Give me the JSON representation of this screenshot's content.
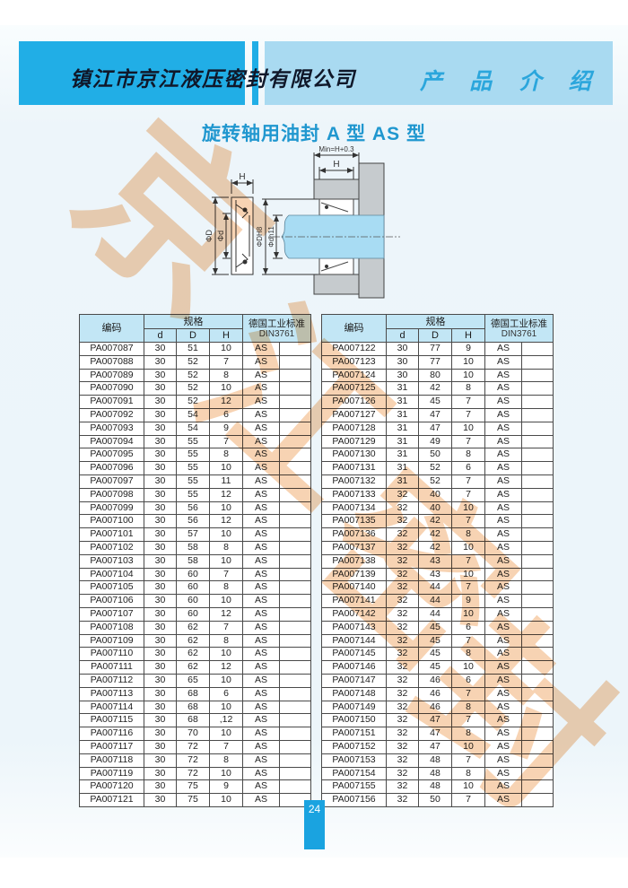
{
  "header": {
    "company": "镇江市京江液压密封有限公司",
    "section": "产 品 介 绍"
  },
  "title": "旋转轴用油封 A 型  AS 型",
  "watermark": {
    "chars": [
      "京",
      "江",
      "密",
      "封"
    ]
  },
  "diagram": {
    "left": {
      "h": "H",
      "outer_dia": "ΦD",
      "inner_dia": "Φd"
    },
    "right": {
      "min": "Min=H+0.3",
      "h": "H",
      "bore_dia": "ΦDH8",
      "shaft_dia": "Φdh11"
    }
  },
  "tables": {
    "headers": {
      "code": "编码",
      "spec": "规格",
      "d": "d",
      "D": "D",
      "H": "H",
      "din1": "德国工业标准",
      "din2": "DIN3761"
    },
    "left": {
      "rows": [
        [
          "PA007087",
          "30",
          "51",
          "10",
          "AS"
        ],
        [
          "PA007088",
          "30",
          "52",
          "7",
          "AS"
        ],
        [
          "PA007089",
          "30",
          "52",
          "8",
          "AS"
        ],
        [
          "PA007090",
          "30",
          "52",
          "10",
          "AS"
        ],
        [
          "PA007091",
          "30",
          "52",
          "12",
          "AS"
        ],
        [
          "PA007092",
          "30",
          "54",
          "6",
          "AS"
        ],
        [
          "PA007093",
          "30",
          "54",
          "9",
          "AS"
        ],
        [
          "PA007094",
          "30",
          "55",
          "7",
          "AS"
        ],
        [
          "PA007095",
          "30",
          "55",
          "8",
          "AS"
        ],
        [
          "PA007096",
          "30",
          "55",
          "10",
          "AS"
        ],
        [
          "PA007097",
          "30",
          "55",
          "11",
          "AS"
        ],
        [
          "PA007098",
          "30",
          "55",
          "12",
          "AS"
        ],
        [
          "PA007099",
          "30",
          "56",
          "10",
          "AS"
        ],
        [
          "PA007100",
          "30",
          "56",
          "12",
          "AS"
        ],
        [
          "PA007101",
          "30",
          "57",
          "10",
          "AS"
        ],
        [
          "PA007102",
          "30",
          "58",
          "8",
          "AS"
        ],
        [
          "PA007103",
          "30",
          "58",
          "10",
          "AS"
        ],
        [
          "PA007104",
          "30",
          "60",
          "7",
          "AS"
        ],
        [
          "PA007105",
          "30",
          "60",
          "8",
          "AS"
        ],
        [
          "PA007106",
          "30",
          "60",
          "10",
          "AS"
        ],
        [
          "PA007107",
          "30",
          "60",
          "12",
          "AS"
        ],
        [
          "PA007108",
          "30",
          "62",
          "7",
          "AS"
        ],
        [
          "PA007109",
          "30",
          "62",
          "8",
          "AS"
        ],
        [
          "PA007110",
          "30",
          "62",
          "10",
          "AS"
        ],
        [
          "PA007111",
          "30",
          "62",
          "12",
          "AS"
        ],
        [
          "PA007112",
          "30",
          "65",
          "10",
          "AS"
        ],
        [
          "PA007113",
          "30",
          "68",
          "6",
          "AS"
        ],
        [
          "PA007114",
          "30",
          "68",
          "10",
          "AS"
        ],
        [
          "PA007115",
          "30",
          "68",
          ",12",
          "AS"
        ],
        [
          "PA007116",
          "30",
          "70",
          "10",
          "AS"
        ],
        [
          "PA007117",
          "30",
          "72",
          "7",
          "AS"
        ],
        [
          "PA007118",
          "30",
          "72",
          "8",
          "AS"
        ],
        [
          "PA007119",
          "30",
          "72",
          "10",
          "AS"
        ],
        [
          "PA007120",
          "30",
          "75",
          "9",
          "AS"
        ],
        [
          "PA007121",
          "30",
          "75",
          "10",
          "AS"
        ]
      ]
    },
    "right": {
      "rows": [
        [
          "PA007122",
          "30",
          "77",
          "9",
          "AS"
        ],
        [
          "PA007123",
          "30",
          "77",
          "10",
          "AS"
        ],
        [
          "PA007124",
          "30",
          "80",
          "10",
          "AS"
        ],
        [
          "PA007125",
          "31",
          "42",
          "8",
          "AS"
        ],
        [
          "PA007126",
          "31",
          "45",
          "7",
          "AS"
        ],
        [
          "PA007127",
          "31",
          "47",
          "7",
          "AS"
        ],
        [
          "PA007128",
          "31",
          "47",
          "10",
          "AS"
        ],
        [
          "PA007129",
          "31",
          "49",
          "7",
          "AS"
        ],
        [
          "PA007130",
          "31",
          "50",
          "8",
          "AS"
        ],
        [
          "PA007131",
          "31",
          "52",
          "6",
          "AS"
        ],
        [
          "PA007132",
          "31",
          "52",
          "7",
          "AS"
        ],
        [
          "PA007133",
          "32",
          "40",
          "7",
          "AS"
        ],
        [
          "PA007134",
          "32",
          "40",
          "10",
          "AS"
        ],
        [
          "PA007135",
          "32",
          "42",
          "7",
          "AS"
        ],
        [
          "PA007136",
          "32",
          "42",
          "8",
          "AS"
        ],
        [
          "PA007137",
          "32",
          "42",
          "10",
          "AS"
        ],
        [
          "PA007138",
          "32",
          "43",
          "7",
          "AS"
        ],
        [
          "PA007139",
          "32",
          "43",
          "10",
          "AS"
        ],
        [
          "PA007140",
          "32",
          "44",
          "7",
          "AS"
        ],
        [
          "PA007141",
          "32",
          "44",
          "9",
          "AS"
        ],
        [
          "PA007142",
          "32",
          "44",
          "10",
          "AS"
        ],
        [
          "PA007143",
          "32",
          "45",
          "6",
          "AS"
        ],
        [
          "PA007144",
          "32",
          "45",
          "7",
          "AS"
        ],
        [
          "PA007145",
          "32",
          "45",
          "8",
          "AS"
        ],
        [
          "PA007146",
          "32",
          "45",
          "10",
          "AS"
        ],
        [
          "PA007147",
          "32",
          "46",
          "6",
          "AS"
        ],
        [
          "PA007148",
          "32",
          "46",
          "7",
          "AS"
        ],
        [
          "PA007149",
          "32",
          "46",
          "8",
          "AS"
        ],
        [
          "PA007150",
          "32",
          "47",
          "7",
          "AS"
        ],
        [
          "PA007151",
          "32",
          "47",
          "8",
          "AS"
        ],
        [
          "PA007152",
          "32",
          "47",
          "10",
          "AS"
        ],
        [
          "PA007153",
          "32",
          "48",
          "7",
          "AS"
        ],
        [
          "PA007154",
          "32",
          "48",
          "8",
          "AS"
        ],
        [
          "PA007155",
          "32",
          "48",
          "10",
          "AS"
        ],
        [
          "PA007156",
          "32",
          "50",
          "7",
          "AS"
        ]
      ]
    }
  },
  "footer": {
    "page_number": "24"
  },
  "colors": {
    "header_dark_blue": "#21aee6",
    "header_light_blue": "#a9daf1",
    "title_blue": "#2097cf",
    "table_header_bg": "#c2e6f5",
    "watermark_orange": "#f0a868",
    "shaft_blue": "#a8dcf3",
    "housing_gray": "#c6cbce",
    "page_number_bg": "#1aa3e0"
  }
}
